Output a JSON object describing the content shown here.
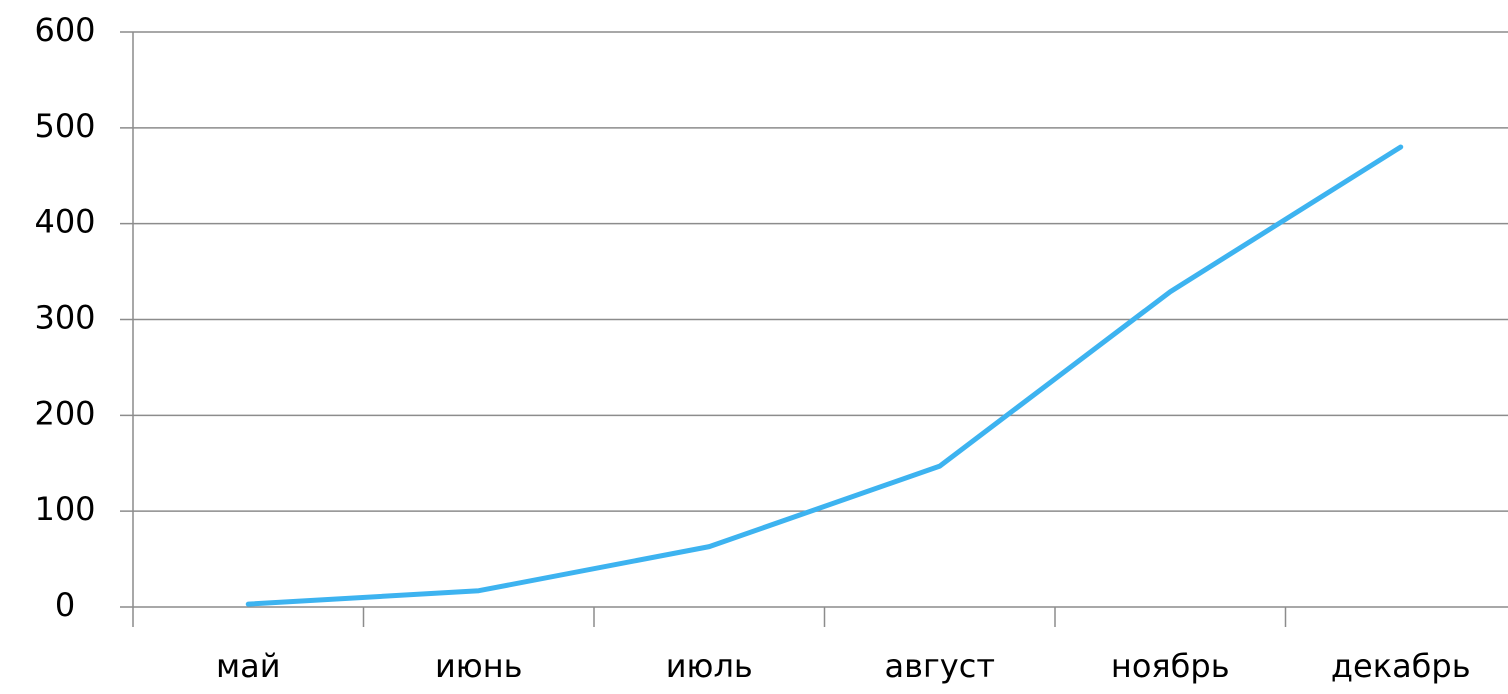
{
  "chart_data": {
    "type": "line",
    "categories": [
      "май",
      "июнь",
      "июль",
      "август",
      "ноябрь",
      "декабрь"
    ],
    "series": [
      {
        "name": null,
        "color": "#3db3f0",
        "values": [
          3,
          17,
          63,
          147,
          329,
          480
        ]
      }
    ],
    "ylim": [
      0,
      600
    ],
    "yticks": [
      0,
      100,
      200,
      300,
      400,
      500,
      600
    ],
    "grid": true
  }
}
